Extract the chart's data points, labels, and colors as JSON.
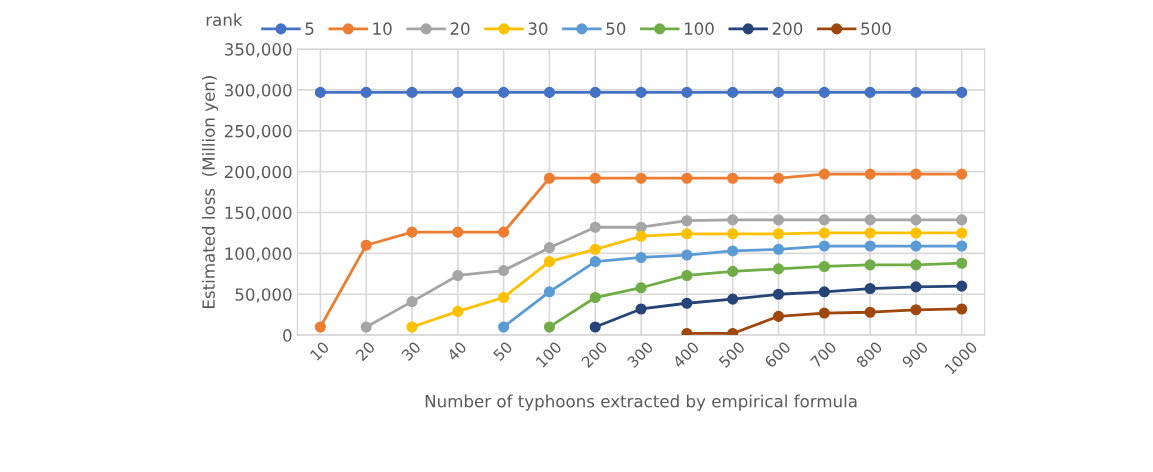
{
  "chart_data": {
    "type": "line",
    "xlabel": "Number of typhoons extracted by empirical formula",
    "ylabel": "Estimated loss  (Million yen)",
    "legend_title": "rank",
    "categories": [
      "10",
      "20",
      "30",
      "40",
      "50",
      "100",
      "200",
      "300",
      "400",
      "500",
      "600",
      "700",
      "800",
      "900",
      "1000"
    ],
    "ylim": [
      0,
      350000
    ],
    "yticks": [
      {
        "value": 0,
        "label": "0"
      },
      {
        "value": 50000,
        "label": "50,000"
      },
      {
        "value": 100000,
        "label": "100,000"
      },
      {
        "value": 150000,
        "label": "150,000"
      },
      {
        "value": 200000,
        "label": "200,000"
      },
      {
        "value": 250000,
        "label": "250,000"
      },
      {
        "value": 300000,
        "label": "300,000"
      },
      {
        "value": 350000,
        "label": "350,000"
      }
    ],
    "grid": true,
    "legend": "top",
    "marker": "circle",
    "line_style": "solid",
    "series": [
      {
        "name": "5",
        "color": "#4472c4",
        "values": [
          297000,
          297000,
          297000,
          297000,
          297000,
          297000,
          297000,
          297000,
          297000,
          297000,
          297000,
          297000,
          297000,
          297000,
          297000
        ]
      },
      {
        "name": "10",
        "color": "#ed7d31",
        "values": [
          10000,
          110000,
          126000,
          126000,
          126000,
          192000,
          192000,
          192000,
          192000,
          192000,
          192000,
          197000,
          197000,
          197000,
          197000
        ]
      },
      {
        "name": "20",
        "color": "#a5a5a5",
        "values": [
          null,
          10000,
          41000,
          73000,
          79000,
          107000,
          132000,
          132000,
          140000,
          141000,
          141000,
          141000,
          141000,
          141000,
          141000
        ]
      },
      {
        "name": "30",
        "color": "#ffc000",
        "values": [
          null,
          null,
          10000,
          29000,
          46000,
          90000,
          105000,
          121000,
          124000,
          124000,
          124000,
          125000,
          125000,
          125000,
          125000
        ]
      },
      {
        "name": "50",
        "color": "#5b9bd5",
        "values": [
          null,
          null,
          null,
          null,
          10000,
          53000,
          90000,
          95000,
          98000,
          103000,
          105000,
          109000,
          109000,
          109000,
          109000
        ]
      },
      {
        "name": "100",
        "color": "#70ad47",
        "values": [
          null,
          null,
          null,
          null,
          null,
          10000,
          46000,
          58000,
          73000,
          78000,
          81000,
          84000,
          86000,
          86000,
          88000
        ]
      },
      {
        "name": "200",
        "color": "#264478",
        "values": [
          null,
          null,
          null,
          null,
          null,
          null,
          10000,
          32000,
          39000,
          44000,
          50000,
          53000,
          57000,
          59000,
          60000
        ]
      },
      {
        "name": "500",
        "color": "#9e480e",
        "values": [
          null,
          null,
          null,
          null,
          null,
          null,
          null,
          null,
          2000,
          2000,
          23000,
          27000,
          28000,
          31000,
          32000
        ]
      }
    ]
  }
}
